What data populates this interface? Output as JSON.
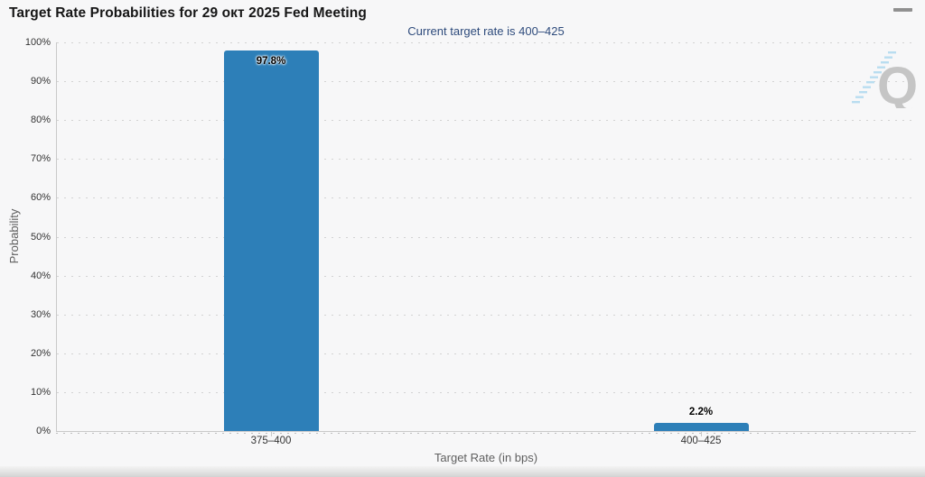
{
  "chart_data": {
    "type": "bar",
    "title": "Target Rate Probabilities for 29 окт 2025 Fed Meeting",
    "subtitle": "Current target rate is 400–425",
    "categories": [
      "375–400",
      "400–425"
    ],
    "values": [
      97.8,
      2.2
    ],
    "value_labels": [
      "97.8%",
      "2.2%"
    ],
    "xlabel": "Target Rate (in bps)",
    "ylabel": "Probability",
    "ylim": [
      0,
      100
    ],
    "ytick_step": 10,
    "ytick_labels": [
      "0%",
      "10%",
      "20%",
      "30%",
      "40%",
      "50%",
      "60%",
      "70%",
      "80%",
      "90%",
      "100%"
    ],
    "grid": "horizontal-dotted",
    "legend": "none",
    "bar_color": "#2d7fb8"
  },
  "watermark": {
    "letter": "Q"
  },
  "colors": {
    "background": "#f7f7f8",
    "bar": "#2d7fb8",
    "subtitle_text": "#2e4b7c",
    "tick_text": "#333333",
    "axis_title_text": "#5f5f5f",
    "grid": "#d3d3d3",
    "axis_line": "#c9c9c9",
    "menu_icon": "#8f8f8f",
    "watermark_letter": "#c5c5c5",
    "watermark_stripes": "#b9ddf0"
  }
}
